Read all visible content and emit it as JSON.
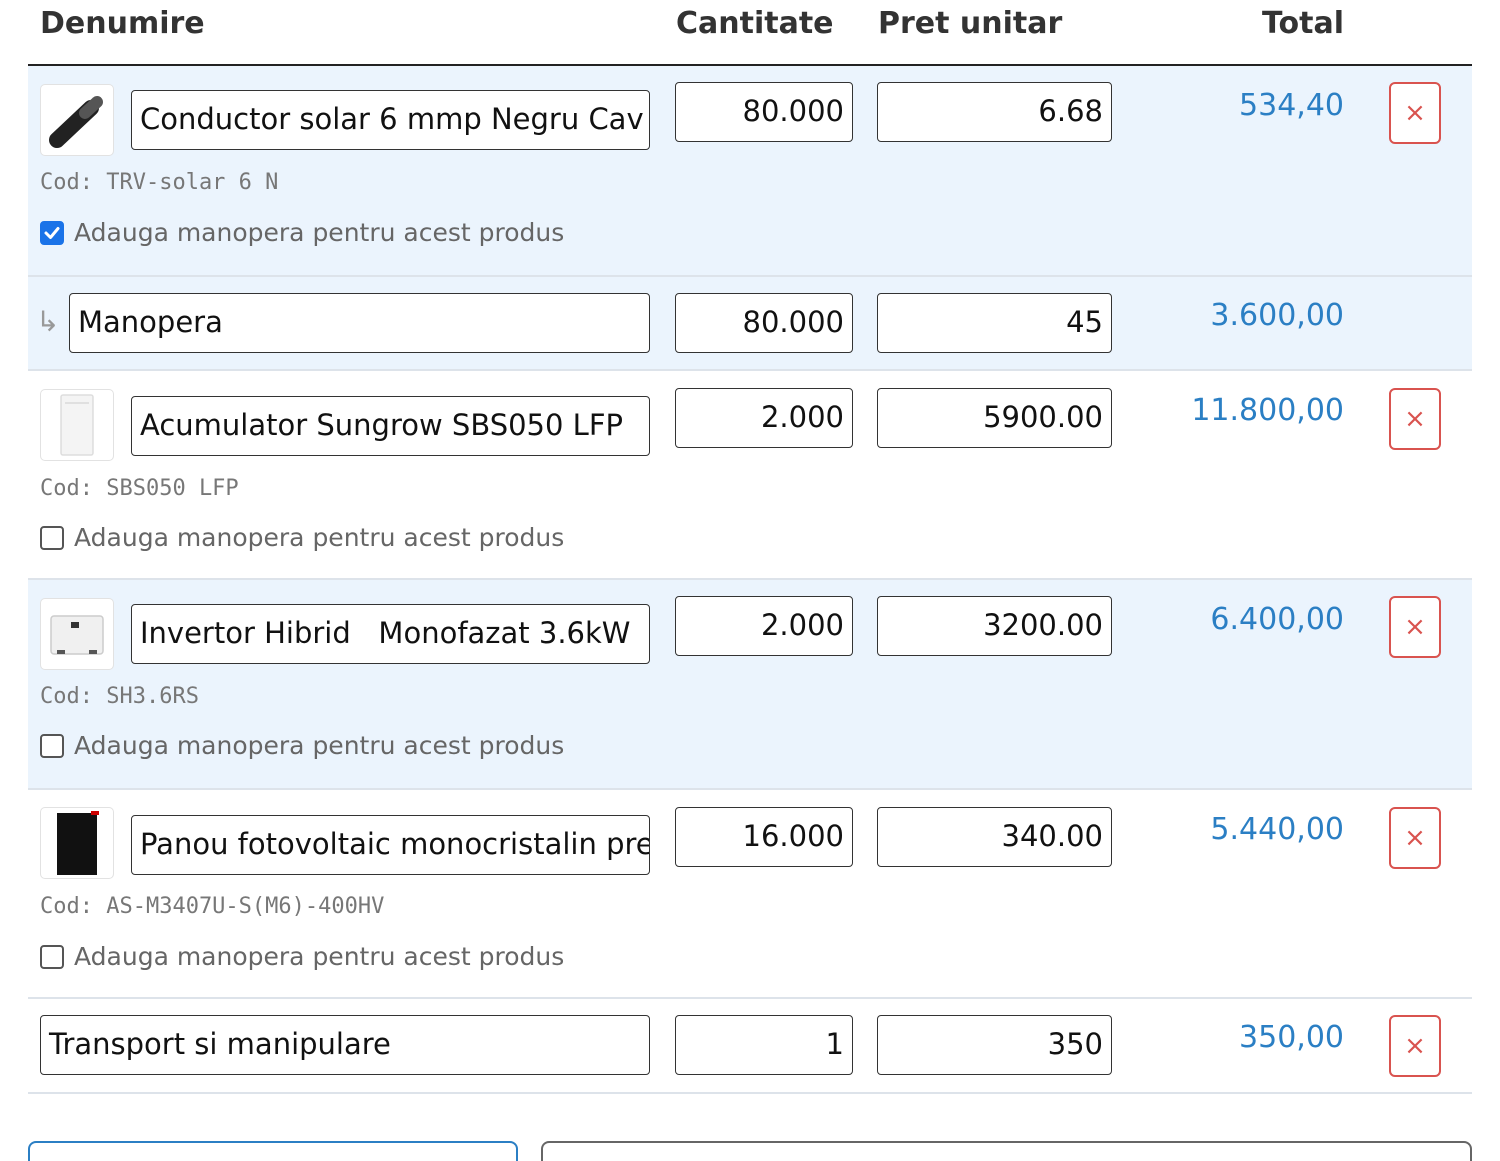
{
  "headers": {
    "name": "Denumire",
    "quantity": "Cantitate",
    "unit_price": "Pret unitar",
    "total": "Total"
  },
  "rows": [
    {
      "name": "Conductor solar 6 mmp Negru Cav",
      "quantity": "80.000",
      "unit_price": "6.68",
      "total": "534,40",
      "code": "Cod: TRV-solar 6 N",
      "labor_label": "Adauga manopera pentru acest produs",
      "labor_checked": true,
      "thumb_icon": "cable-icon",
      "delete_label": "×"
    },
    {
      "name": "Manopera",
      "quantity": "80.000",
      "unit_price": "45",
      "total": "3.600,00",
      "arrow": "↳"
    },
    {
      "name": "Acumulator Sungrow SBS050 LFP",
      "quantity": "2.000",
      "unit_price": "5900.00",
      "total": "11.800,00",
      "code": "Cod: SBS050 LFP",
      "labor_label": "Adauga manopera pentru acest produs",
      "labor_checked": false,
      "thumb_icon": "battery-icon",
      "delete_label": "×"
    },
    {
      "name": "Invertor Hibrid   Monofazat 3.6kW",
      "quantity": "2.000",
      "unit_price": "3200.00",
      "total": "6.400,00",
      "code": "Cod: SH3.6RS",
      "labor_label": "Adauga manopera pentru acest produs",
      "labor_checked": false,
      "thumb_icon": "inverter-icon",
      "delete_label": "×"
    },
    {
      "name": "Panou fotovoltaic monocristalin pre",
      "quantity": "16.000",
      "unit_price": "340.00",
      "total": "5.440,00",
      "code": "Cod: AS-M3407U-S(M6)-400HV",
      "labor_label": "Adauga manopera pentru acest produs",
      "labor_checked": false,
      "thumb_icon": "solar-panel-icon",
      "delete_label": "×"
    },
    {
      "name": "Transport si manipulare",
      "quantity": "1",
      "unit_price": "350",
      "total": "350,00",
      "delete_label": "×"
    }
  ],
  "colors": {
    "row_highlight": "#ebf4fd",
    "total_text": "#2b7fc4",
    "delete_border": "#d9534f",
    "checkbox_checked": "#1a73e8"
  }
}
